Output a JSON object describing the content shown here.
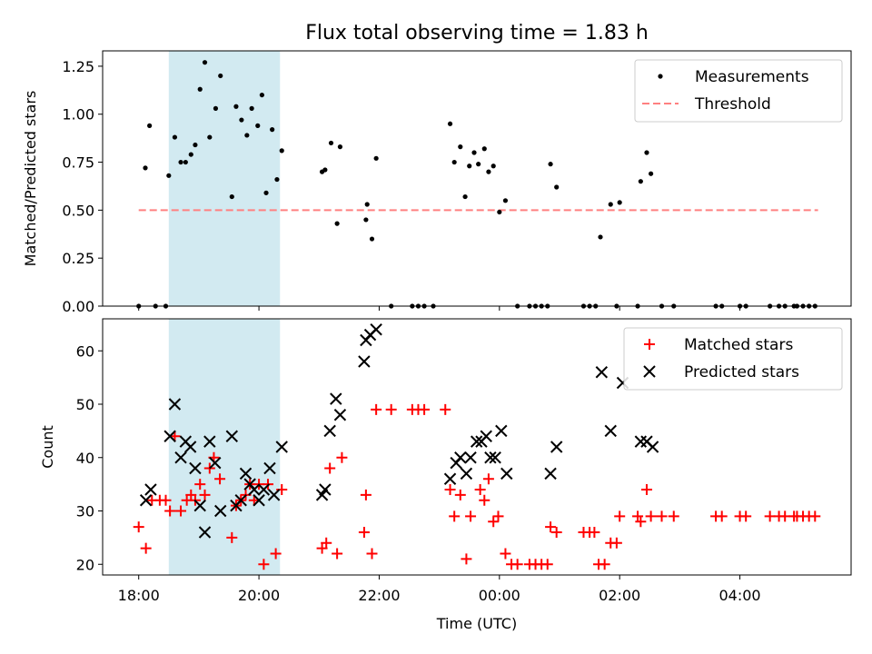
{
  "title": "Flux total observing time = 1.83 h",
  "colors": {
    "measurement": "#000000",
    "threshold": "#ff8080",
    "matched": "#ff0000",
    "predicted": "#000000",
    "shade": "#add8e6"
  },
  "chart_data": [
    {
      "type": "scatter",
      "ylabel": "Matched/Predicted stars",
      "xlim": [
        -0.6,
        11.85
      ],
      "ylim": [
        0,
        1.33
      ],
      "yticks": [
        0,
        0.25,
        0.5,
        0.75,
        1.0,
        1.25
      ],
      "ytick_labels": [
        "0.00",
        "0.25",
        "0.50",
        "0.75",
        "1.00",
        "1.25"
      ],
      "shaded_x_range": [
        0.5,
        2.35
      ],
      "legend": {
        "placement": "top-right",
        "entries": [
          {
            "label": "Measurements",
            "marker": "dot"
          },
          {
            "label": "Threshold",
            "marker": "dashed-line"
          }
        ]
      },
      "threshold": {
        "name": "Threshold",
        "y": 0.5,
        "x": [
          0,
          11.3
        ]
      },
      "series": [
        {
          "name": "Measurements",
          "points": [
            [
              0.0,
              0
            ],
            [
              0.11,
              0.72
            ],
            [
              0.18,
              0.94
            ],
            [
              0.28,
              0
            ],
            [
              0.45,
              0
            ],
            [
              0.5,
              0.68
            ],
            [
              0.6,
              0.88
            ],
            [
              0.7,
              0.75
            ],
            [
              0.78,
              0.75
            ],
            [
              0.87,
              0.79
            ],
            [
              0.94,
              0.84
            ],
            [
              1.02,
              1.13
            ],
            [
              1.1,
              1.27
            ],
            [
              1.18,
              0.88
            ],
            [
              1.28,
              1.03
            ],
            [
              1.36,
              1.2
            ],
            [
              1.55,
              0.57
            ],
            [
              1.62,
              1.04
            ],
            [
              1.71,
              0.97
            ],
            [
              1.8,
              0.89
            ],
            [
              1.88,
              1.03
            ],
            [
              1.98,
              0.94
            ],
            [
              2.05,
              1.1
            ],
            [
              2.12,
              0.59
            ],
            [
              2.22,
              0.92
            ],
            [
              2.3,
              0.66
            ],
            [
              2.38,
              0.81
            ],
            [
              3.05,
              0.7
            ],
            [
              3.1,
              0.71
            ],
            [
              3.2,
              0.85
            ],
            [
              3.3,
              0.43
            ],
            [
              3.35,
              0.83
            ],
            [
              3.78,
              0.45
            ],
            [
              3.8,
              0.53
            ],
            [
              3.88,
              0.35
            ],
            [
              3.95,
              0.77
            ],
            [
              4.2,
              0
            ],
            [
              4.55,
              0
            ],
            [
              4.65,
              0
            ],
            [
              4.75,
              0
            ],
            [
              4.9,
              0
            ],
            [
              5.18,
              0.95
            ],
            [
              5.25,
              0.75
            ],
            [
              5.35,
              0.83
            ],
            [
              5.43,
              0.57
            ],
            [
              5.5,
              0.73
            ],
            [
              5.58,
              0.8
            ],
            [
              5.65,
              0.74
            ],
            [
              5.75,
              0.82
            ],
            [
              5.82,
              0.7
            ],
            [
              5.9,
              0.73
            ],
            [
              6.0,
              0.49
            ],
            [
              6.1,
              0.55
            ],
            [
              6.3,
              0
            ],
            [
              6.5,
              0
            ],
            [
              6.6,
              0
            ],
            [
              6.7,
              0
            ],
            [
              6.8,
              0
            ],
            [
              6.85,
              0.74
            ],
            [
              6.95,
              0.62
            ],
            [
              7.4,
              0
            ],
            [
              7.5,
              0
            ],
            [
              7.6,
              0
            ],
            [
              7.68,
              0.36
            ],
            [
              7.85,
              0.53
            ],
            [
              7.95,
              0
            ],
            [
              8.0,
              0.54
            ],
            [
              8.3,
              0
            ],
            [
              8.35,
              0.65
            ],
            [
              8.45,
              0.8
            ],
            [
              8.52,
              0.69
            ],
            [
              8.7,
              0
            ],
            [
              8.9,
              0
            ],
            [
              9.6,
              0
            ],
            [
              9.7,
              0
            ],
            [
              10.0,
              0
            ],
            [
              10.1,
              0
            ],
            [
              10.5,
              0
            ],
            [
              10.65,
              0
            ],
            [
              10.75,
              0
            ],
            [
              10.9,
              0
            ],
            [
              10.95,
              0
            ],
            [
              11.05,
              0
            ],
            [
              11.15,
              0
            ],
            [
              11.25,
              0
            ]
          ]
        }
      ]
    },
    {
      "type": "scatter",
      "xlabel": "Time (UTC)",
      "ylabel": "Count",
      "xlim": [
        -0.6,
        11.85
      ],
      "ylim": [
        18,
        66
      ],
      "xticks": [
        0,
        2,
        4,
        6,
        8,
        10
      ],
      "xtick_labels": [
        "18:00",
        "20:00",
        "22:00",
        "00:00",
        "02:00",
        "04:00"
      ],
      "yticks": [
        20,
        30,
        40,
        50,
        60
      ],
      "ytick_labels": [
        "20",
        "30",
        "40",
        "50",
        "60"
      ],
      "shaded_x_range": [
        0.5,
        2.35
      ],
      "legend": {
        "placement": "top-right",
        "entries": [
          {
            "label": "Matched stars",
            "marker": "plus"
          },
          {
            "label": "Predicted stars",
            "marker": "x"
          }
        ]
      },
      "series": [
        {
          "name": "Matched stars",
          "points": [
            [
              0.0,
              27
            ],
            [
              0.12,
              23
            ],
            [
              0.22,
              32
            ],
            [
              0.35,
              32
            ],
            [
              0.45,
              32
            ],
            [
              0.52,
              30
            ],
            [
              0.6,
              44
            ],
            [
              0.7,
              30
            ],
            [
              0.8,
              32
            ],
            [
              0.87,
              33
            ],
            [
              0.94,
              32
            ],
            [
              1.02,
              35
            ],
            [
              1.1,
              33
            ],
            [
              1.18,
              38
            ],
            [
              1.25,
              40
            ],
            [
              1.35,
              36
            ],
            [
              1.55,
              25
            ],
            [
              1.62,
              31
            ],
            [
              1.7,
              32
            ],
            [
              1.78,
              33
            ],
            [
              1.85,
              35
            ],
            [
              1.92,
              32
            ],
            [
              2.0,
              35
            ],
            [
              2.08,
              20
            ],
            [
              2.15,
              35
            ],
            [
              2.28,
              22
            ],
            [
              2.38,
              34
            ],
            [
              3.05,
              23
            ],
            [
              3.12,
              24
            ],
            [
              3.18,
              38
            ],
            [
              3.3,
              22
            ],
            [
              3.38,
              40
            ],
            [
              3.75,
              26
            ],
            [
              3.78,
              33
            ],
            [
              3.88,
              22
            ],
            [
              3.95,
              49
            ],
            [
              4.2,
              49
            ],
            [
              4.55,
              49
            ],
            [
              4.65,
              49
            ],
            [
              4.75,
              49
            ],
            [
              5.1,
              49
            ],
            [
              5.18,
              34
            ],
            [
              5.25,
              29
            ],
            [
              5.35,
              33
            ],
            [
              5.45,
              21
            ],
            [
              5.52,
              29
            ],
            [
              5.68,
              34
            ],
            [
              5.75,
              32
            ],
            [
              5.82,
              36
            ],
            [
              5.9,
              28
            ],
            [
              5.98,
              29
            ],
            [
              6.1,
              22
            ],
            [
              6.2,
              20
            ],
            [
              6.3,
              20
            ],
            [
              6.5,
              20
            ],
            [
              6.6,
              20
            ],
            [
              6.7,
              20
            ],
            [
              6.8,
              20
            ],
            [
              6.85,
              27
            ],
            [
              6.95,
              26
            ],
            [
              7.4,
              26
            ],
            [
              7.5,
              26
            ],
            [
              7.58,
              26
            ],
            [
              7.65,
              20
            ],
            [
              7.75,
              20
            ],
            [
              7.85,
              24
            ],
            [
              7.95,
              24
            ],
            [
              8.0,
              29
            ],
            [
              8.3,
              29
            ],
            [
              8.35,
              28
            ],
            [
              8.45,
              34
            ],
            [
              8.52,
              29
            ],
            [
              8.7,
              29
            ],
            [
              8.9,
              29
            ],
            [
              9.6,
              29
            ],
            [
              9.7,
              29
            ],
            [
              10.0,
              29
            ],
            [
              10.1,
              29
            ],
            [
              10.5,
              29
            ],
            [
              10.65,
              29
            ],
            [
              10.75,
              29
            ],
            [
              10.9,
              29
            ],
            [
              10.95,
              29
            ],
            [
              11.05,
              29
            ],
            [
              11.15,
              29
            ],
            [
              11.25,
              29
            ]
          ]
        },
        {
          "name": "Predicted stars",
          "points": [
            [
              0.12,
              32
            ],
            [
              0.2,
              34
            ],
            [
              0.52,
              44
            ],
            [
              0.6,
              50
            ],
            [
              0.7,
              40
            ],
            [
              0.78,
              43
            ],
            [
              0.86,
              42
            ],
            [
              0.94,
              38
            ],
            [
              1.02,
              31
            ],
            [
              1.1,
              26
            ],
            [
              1.18,
              43
            ],
            [
              1.27,
              39
            ],
            [
              1.36,
              30
            ],
            [
              1.55,
              44
            ],
            [
              1.62,
              31
            ],
            [
              1.7,
              32
            ],
            [
              1.78,
              37
            ],
            [
              1.85,
              35
            ],
            [
              1.92,
              34
            ],
            [
              2.0,
              32
            ],
            [
              2.08,
              34
            ],
            [
              2.18,
              38
            ],
            [
              2.25,
              33
            ],
            [
              2.38,
              42
            ],
            [
              3.05,
              33
            ],
            [
              3.1,
              34
            ],
            [
              3.18,
              45
            ],
            [
              3.28,
              51
            ],
            [
              3.35,
              48
            ],
            [
              3.75,
              58
            ],
            [
              3.78,
              62
            ],
            [
              3.85,
              63
            ],
            [
              3.95,
              64
            ],
            [
              5.18,
              36
            ],
            [
              5.28,
              39
            ],
            [
              5.35,
              40
            ],
            [
              5.45,
              37
            ],
            [
              5.52,
              40
            ],
            [
              5.62,
              43
            ],
            [
              5.7,
              43
            ],
            [
              5.78,
              44
            ],
            [
              5.85,
              40
            ],
            [
              5.93,
              40
            ],
            [
              6.03,
              45
            ],
            [
              6.12,
              37
            ],
            [
              6.85,
              37
            ],
            [
              6.95,
              42
            ],
            [
              7.7,
              56
            ],
            [
              7.85,
              45
            ],
            [
              8.05,
              54
            ],
            [
              8.35,
              43
            ],
            [
              8.45,
              43
            ],
            [
              8.55,
              42
            ]
          ]
        }
      ]
    }
  ]
}
